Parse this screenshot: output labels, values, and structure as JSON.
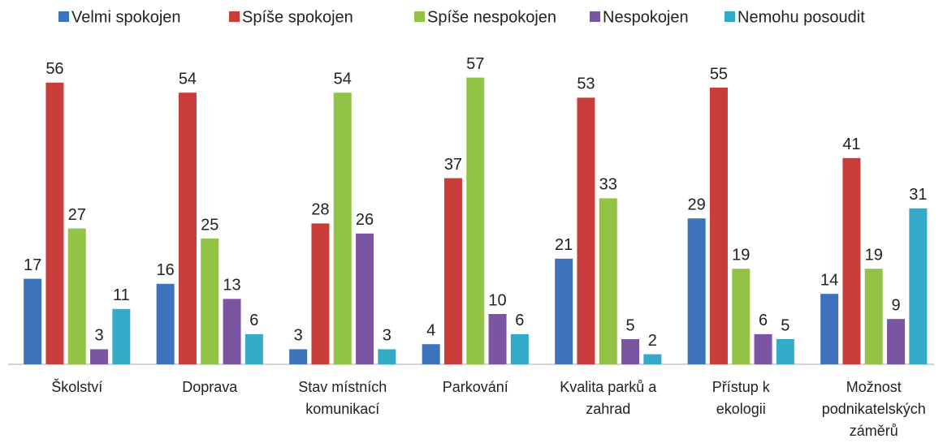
{
  "chart_data": {
    "type": "bar",
    "categories": [
      "Školství",
      "Doprava",
      "Stav místních komunikací",
      "Parkování",
      "Kvalita parků a zahrad",
      "Přístup k ekologii",
      "Možnost podnikatelských záměrů"
    ],
    "series": [
      {
        "name": "Velmi spokojen",
        "color": "#3d72bd",
        "values": [
          17,
          16,
          3,
          4,
          21,
          29,
          14
        ]
      },
      {
        "name": "Spíše spokojen",
        "color": "#c83c39",
        "values": [
          56,
          54,
          28,
          37,
          53,
          55,
          41
        ]
      },
      {
        "name": "Spíše nespokojen",
        "color": "#93c346",
        "values": [
          27,
          25,
          54,
          57,
          33,
          19,
          19
        ]
      },
      {
        "name": "Nespokojen",
        "color": "#7a55a2",
        "values": [
          3,
          13,
          26,
          10,
          5,
          6,
          9
        ]
      },
      {
        "name": "Nemohu posoudit",
        "color": "#33abc8",
        "values": [
          11,
          6,
          3,
          6,
          2,
          5,
          31
        ]
      }
    ]
  }
}
